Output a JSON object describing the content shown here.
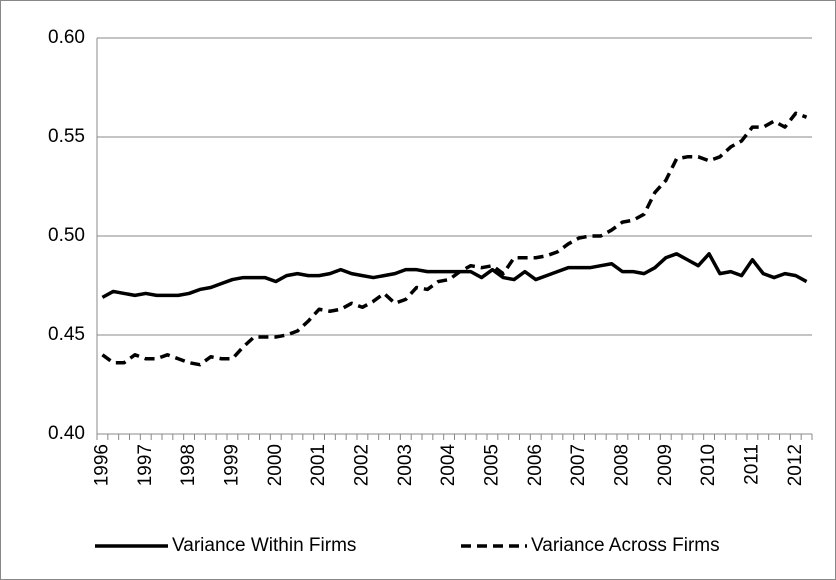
{
  "chart_data": {
    "type": "line",
    "categories": [
      "1996",
      null,
      null,
      null,
      "1997",
      null,
      null,
      null,
      "1998",
      null,
      null,
      null,
      "1999",
      null,
      null,
      null,
      "2000",
      null,
      null,
      null,
      "2001",
      null,
      null,
      null,
      "2002",
      null,
      null,
      null,
      "2003",
      null,
      null,
      null,
      "2004",
      null,
      null,
      null,
      "2005",
      null,
      null,
      null,
      "2006",
      null,
      null,
      null,
      "2007",
      null,
      null,
      null,
      "2008",
      null,
      null,
      null,
      "2009",
      null,
      null,
      null,
      "2010",
      null,
      null,
      null,
      "2011",
      null,
      null,
      null,
      "2012",
      null
    ],
    "series": [
      {
        "name": "Variance Within Firms",
        "color": "#000000",
        "dash": "solid",
        "values": [
          0.469,
          0.472,
          0.471,
          0.47,
          0.471,
          0.47,
          0.47,
          0.47,
          0.471,
          0.473,
          0.474,
          0.476,
          0.478,
          0.479,
          0.479,
          0.479,
          0.477,
          0.48,
          0.481,
          0.48,
          0.48,
          0.481,
          0.483,
          0.481,
          0.48,
          0.479,
          0.48,
          0.481,
          0.483,
          0.483,
          0.482,
          0.482,
          0.482,
          0.482,
          0.482,
          0.479,
          0.483,
          0.479,
          0.478,
          0.482,
          0.478,
          0.48,
          0.482,
          0.484,
          0.484,
          0.484,
          0.485,
          0.486,
          0.482,
          0.482,
          0.481,
          0.484,
          0.489,
          0.491,
          0.488,
          0.485,
          0.491,
          0.481,
          0.482,
          0.48,
          0.488,
          0.481,
          0.479,
          0.481,
          0.48,
          0.477
        ]
      },
      {
        "name": "Variance Across Firms",
        "color": "#000000",
        "dash": "dashed",
        "values": [
          0.44,
          0.436,
          0.436,
          0.44,
          0.438,
          0.438,
          0.44,
          0.438,
          0.436,
          0.435,
          0.439,
          0.438,
          0.438,
          0.444,
          0.449,
          0.449,
          0.449,
          0.45,
          0.452,
          0.457,
          0.463,
          0.462,
          0.463,
          0.466,
          0.464,
          0.467,
          0.471,
          0.466,
          0.468,
          0.474,
          0.473,
          0.477,
          0.478,
          0.482,
          0.485,
          0.484,
          0.485,
          0.481,
          0.489,
          0.489,
          0.489,
          0.49,
          0.492,
          0.496,
          0.499,
          0.5,
          0.5,
          0.503,
          0.507,
          0.508,
          0.511,
          0.522,
          0.528,
          0.539,
          0.54,
          0.54,
          0.538,
          0.54,
          0.545,
          0.548,
          0.555,
          0.555,
          0.558,
          0.555,
          0.562,
          0.56
        ]
      }
    ],
    "ylim": [
      0.4,
      0.6
    ],
    "yticks": [
      {
        "value": 0.4,
        "label": "0.40"
      },
      {
        "value": 0.45,
        "label": "0.45"
      },
      {
        "value": 0.5,
        "label": "0.50"
      },
      {
        "value": 0.55,
        "label": "0.55"
      },
      {
        "value": 0.6,
        "label": "0.60"
      }
    ],
    "grid": true,
    "legend": "bottom"
  }
}
